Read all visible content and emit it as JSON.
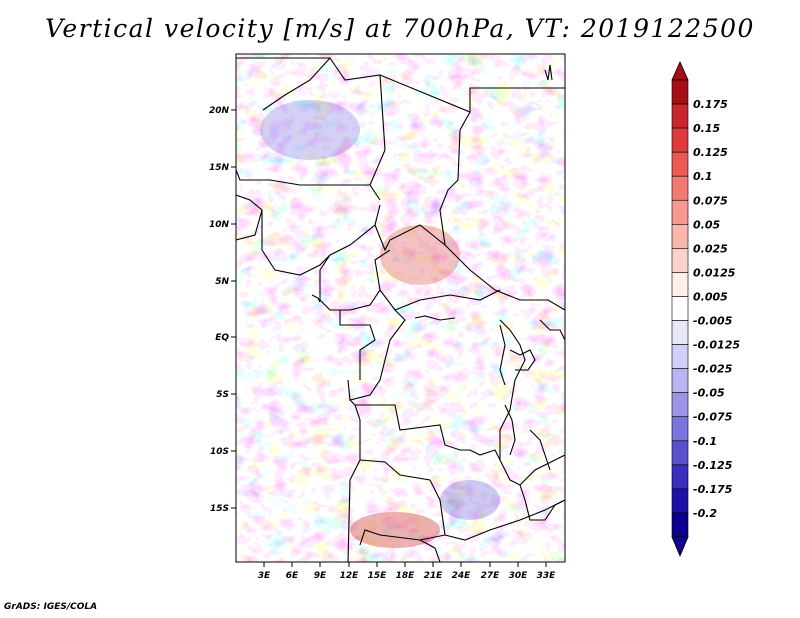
{
  "title": "Vertical velocity [m/s] at 700hPa, VT: 2019122500",
  "credit": "GrADS: IGES/COLA",
  "map": {
    "lat_labels": [
      "20N",
      "15N",
      "10N",
      "5N",
      "EQ",
      "5S",
      "10S",
      "15S"
    ],
    "lon_labels": [
      "3E",
      "6E",
      "9E",
      "12E",
      "15E",
      "18E",
      "21E",
      "24E",
      "27E",
      "30E",
      "33E"
    ],
    "field": "Vertical velocity",
    "level": "700hPa",
    "valid_time": "2019122500"
  },
  "colorbar": {
    "labels": [
      "0.175",
      "0.15",
      "0.125",
      "0.1",
      "0.075",
      "0.05",
      "0.025",
      "0.0125",
      "0.005",
      "-0.005",
      "-0.0125",
      "-0.025",
      "-0.05",
      "-0.075",
      "-0.1",
      "-0.125",
      "-0.175",
      "-0.2"
    ],
    "colors": [
      "#a50f15",
      "#c8252d",
      "#e03a3a",
      "#ec5a55",
      "#f27a72",
      "#f6998f",
      "#f9b6ad",
      "#fcd3cc",
      "#feeeea",
      "#ffffff",
      "#e9e8fb",
      "#d2d0f6",
      "#b8b4f0",
      "#9b95e8",
      "#7c74de",
      "#5a50d0",
      "#3a2fbf",
      "#1f10a8",
      "#0d0090"
    ],
    "top_color": "#a50f15",
    "bottom_color": "#140090"
  }
}
